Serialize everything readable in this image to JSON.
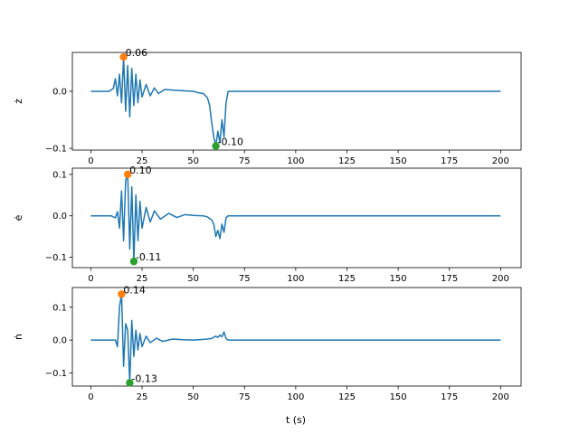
{
  "figure": {
    "xlabel": "t (s)"
  },
  "colors": {
    "series": "#1f77b4",
    "max_marker": "#ff7f0e",
    "min_marker": "#2ca02c"
  },
  "chart_data": [
    {
      "type": "line",
      "ylabel": "ż",
      "xlim": [
        -9,
        210
      ],
      "ylim": [
        -0.103,
        0.068
      ],
      "xticks": [
        0,
        25,
        50,
        75,
        100,
        125,
        150,
        175,
        200
      ],
      "yticks": [
        0.0,
        -0.1
      ],
      "ytick_labels": [
        "0.0",
        "−0.1"
      ],
      "grid": false,
      "max_point": {
        "x": 16,
        "y": 0.06,
        "label": "0.06"
      },
      "min_point": {
        "x": 61,
        "y": -0.096,
        "label": "-0.10"
      },
      "series": [
        {
          "x": [
            0,
            9,
            11,
            12,
            13,
            14,
            15,
            16,
            17,
            18,
            19,
            20,
            21,
            22,
            23,
            24,
            25,
            27,
            29,
            31,
            33,
            36,
            40,
            45,
            50,
            53,
            55,
            57,
            58,
            59,
            60,
            61,
            62,
            63,
            64,
            65,
            66,
            67,
            80,
            120,
            160,
            200
          ],
          "y": [
            0,
            0,
            0.005,
            0.022,
            -0.008,
            0.03,
            -0.02,
            0.06,
            -0.035,
            0.045,
            -0.045,
            0.04,
            -0.025,
            0.03,
            -0.02,
            0.02,
            -0.01,
            0.012,
            -0.008,
            0.006,
            -0.004,
            0.003,
            0.002,
            0.001,
            0.0,
            -0.003,
            -0.004,
            -0.012,
            -0.025,
            -0.055,
            -0.08,
            -0.096,
            -0.07,
            -0.09,
            -0.05,
            -0.08,
            -0.02,
            0.0,
            0,
            0,
            0,
            0
          ]
        }
      ]
    },
    {
      "type": "line",
      "ylabel": "ė",
      "xlim": [
        -9,
        210
      ],
      "ylim": [
        -0.125,
        0.115
      ],
      "xticks": [
        0,
        25,
        50,
        75,
        100,
        125,
        150,
        175,
        200
      ],
      "yticks": [
        0.1,
        0.0,
        -0.1
      ],
      "ytick_labels": [
        "0.1",
        "0.0",
        "−0.1"
      ],
      "grid": false,
      "max_point": {
        "x": 18,
        "y": 0.1,
        "label": "0.10"
      },
      "min_point": {
        "x": 21,
        "y": -0.11,
        "label": "-0.11"
      },
      "series": [
        {
          "x": [
            0,
            10,
            12,
            13,
            14,
            15,
            16,
            17,
            18,
            19,
            20,
            21,
            22,
            23,
            24,
            25,
            27,
            29,
            31,
            34,
            38,
            42,
            46,
            50,
            55,
            57,
            59,
            60,
            61,
            62,
            63,
            64,
            65,
            66,
            67,
            80,
            120,
            160,
            200
          ],
          "y": [
            0,
            0,
            -0.005,
            0.01,
            -0.03,
            0.06,
            -0.06,
            0.085,
            0.1,
            -0.08,
            0.07,
            -0.11,
            0.05,
            -0.06,
            0.035,
            -0.03,
            0.02,
            -0.015,
            0.012,
            -0.008,
            0.006,
            -0.004,
            0.003,
            0.001,
            0.0,
            -0.003,
            -0.01,
            -0.02,
            -0.05,
            -0.035,
            -0.055,
            -0.02,
            -0.04,
            -0.005,
            0.0,
            0,
            0,
            0,
            0
          ]
        }
      ]
    },
    {
      "type": "line",
      "ylabel": "ṅ",
      "xlim": [
        -9,
        210
      ],
      "ylim": [
        -0.14,
        0.16
      ],
      "xticks": [
        0,
        25,
        50,
        75,
        100,
        125,
        150,
        175,
        200
      ],
      "yticks": [
        0.1,
        0.0,
        -0.1
      ],
      "ytick_labels": [
        "0.1",
        "0.0",
        "−0.1"
      ],
      "grid": false,
      "max_point": {
        "x": 15,
        "y": 0.14,
        "label": "0.14"
      },
      "min_point": {
        "x": 19,
        "y": -0.13,
        "label": "-0.13"
      },
      "series": [
        {
          "x": [
            0,
            12,
            13,
            14,
            15,
            16,
            17,
            18,
            19,
            20,
            21,
            22,
            23,
            24,
            25,
            27,
            29,
            32,
            35,
            40,
            45,
            50,
            55,
            59,
            61,
            62,
            63,
            64,
            65,
            66,
            67,
            80,
            120,
            160,
            200
          ],
          "y": [
            0,
            0,
            -0.02,
            0.1,
            0.14,
            -0.08,
            0.05,
            0.03,
            -0.13,
            0.06,
            -0.05,
            0.03,
            -0.03,
            0.02,
            -0.02,
            0.012,
            -0.008,
            0.006,
            -0.004,
            0.003,
            0.001,
            0.0,
            0.002,
            0.005,
            0.012,
            0.008,
            0.015,
            0.01,
            0.025,
            0.005,
            0.0,
            0,
            0,
            0,
            0
          ]
        }
      ]
    }
  ]
}
